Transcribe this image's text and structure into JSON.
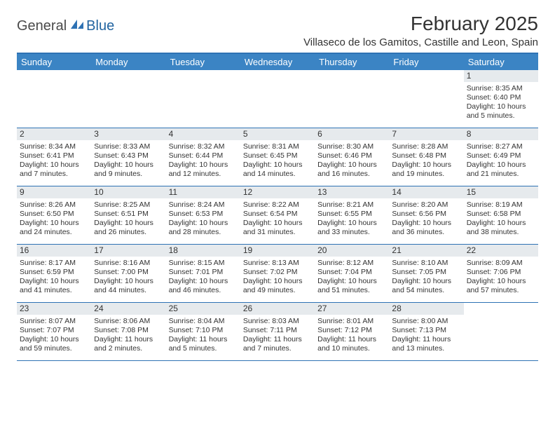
{
  "logo": {
    "general": "General",
    "blue": "Blue"
  },
  "title": "February 2025",
  "location": "Villaseco de los Gamitos, Castille and Leon, Spain",
  "dayNames": [
    "Sunday",
    "Monday",
    "Tuesday",
    "Wednesday",
    "Thursday",
    "Friday",
    "Saturday"
  ],
  "colors": {
    "headerBar": "#3b84c4",
    "borderBlue": "#2e72b4",
    "dayNumBg": "#e6eaed",
    "text": "#333333",
    "logoBlue": "#2264a0"
  },
  "weeks": [
    [
      null,
      null,
      null,
      null,
      null,
      null,
      {
        "n": "1",
        "sr": "Sunrise: 8:35 AM",
        "ss": "Sunset: 6:40 PM",
        "dl": "Daylight: 10 hours and 5 minutes."
      }
    ],
    [
      {
        "n": "2",
        "sr": "Sunrise: 8:34 AM",
        "ss": "Sunset: 6:41 PM",
        "dl": "Daylight: 10 hours and 7 minutes."
      },
      {
        "n": "3",
        "sr": "Sunrise: 8:33 AM",
        "ss": "Sunset: 6:43 PM",
        "dl": "Daylight: 10 hours and 9 minutes."
      },
      {
        "n": "4",
        "sr": "Sunrise: 8:32 AM",
        "ss": "Sunset: 6:44 PM",
        "dl": "Daylight: 10 hours and 12 minutes."
      },
      {
        "n": "5",
        "sr": "Sunrise: 8:31 AM",
        "ss": "Sunset: 6:45 PM",
        "dl": "Daylight: 10 hours and 14 minutes."
      },
      {
        "n": "6",
        "sr": "Sunrise: 8:30 AM",
        "ss": "Sunset: 6:46 PM",
        "dl": "Daylight: 10 hours and 16 minutes."
      },
      {
        "n": "7",
        "sr": "Sunrise: 8:28 AM",
        "ss": "Sunset: 6:48 PM",
        "dl": "Daylight: 10 hours and 19 minutes."
      },
      {
        "n": "8",
        "sr": "Sunrise: 8:27 AM",
        "ss": "Sunset: 6:49 PM",
        "dl": "Daylight: 10 hours and 21 minutes."
      }
    ],
    [
      {
        "n": "9",
        "sr": "Sunrise: 8:26 AM",
        "ss": "Sunset: 6:50 PM",
        "dl": "Daylight: 10 hours and 24 minutes."
      },
      {
        "n": "10",
        "sr": "Sunrise: 8:25 AM",
        "ss": "Sunset: 6:51 PM",
        "dl": "Daylight: 10 hours and 26 minutes."
      },
      {
        "n": "11",
        "sr": "Sunrise: 8:24 AM",
        "ss": "Sunset: 6:53 PM",
        "dl": "Daylight: 10 hours and 28 minutes."
      },
      {
        "n": "12",
        "sr": "Sunrise: 8:22 AM",
        "ss": "Sunset: 6:54 PM",
        "dl": "Daylight: 10 hours and 31 minutes."
      },
      {
        "n": "13",
        "sr": "Sunrise: 8:21 AM",
        "ss": "Sunset: 6:55 PM",
        "dl": "Daylight: 10 hours and 33 minutes."
      },
      {
        "n": "14",
        "sr": "Sunrise: 8:20 AM",
        "ss": "Sunset: 6:56 PM",
        "dl": "Daylight: 10 hours and 36 minutes."
      },
      {
        "n": "15",
        "sr": "Sunrise: 8:19 AM",
        "ss": "Sunset: 6:58 PM",
        "dl": "Daylight: 10 hours and 38 minutes."
      }
    ],
    [
      {
        "n": "16",
        "sr": "Sunrise: 8:17 AM",
        "ss": "Sunset: 6:59 PM",
        "dl": "Daylight: 10 hours and 41 minutes."
      },
      {
        "n": "17",
        "sr": "Sunrise: 8:16 AM",
        "ss": "Sunset: 7:00 PM",
        "dl": "Daylight: 10 hours and 44 minutes."
      },
      {
        "n": "18",
        "sr": "Sunrise: 8:15 AM",
        "ss": "Sunset: 7:01 PM",
        "dl": "Daylight: 10 hours and 46 minutes."
      },
      {
        "n": "19",
        "sr": "Sunrise: 8:13 AM",
        "ss": "Sunset: 7:02 PM",
        "dl": "Daylight: 10 hours and 49 minutes."
      },
      {
        "n": "20",
        "sr": "Sunrise: 8:12 AM",
        "ss": "Sunset: 7:04 PM",
        "dl": "Daylight: 10 hours and 51 minutes."
      },
      {
        "n": "21",
        "sr": "Sunrise: 8:10 AM",
        "ss": "Sunset: 7:05 PM",
        "dl": "Daylight: 10 hours and 54 minutes."
      },
      {
        "n": "22",
        "sr": "Sunrise: 8:09 AM",
        "ss": "Sunset: 7:06 PM",
        "dl": "Daylight: 10 hours and 57 minutes."
      }
    ],
    [
      {
        "n": "23",
        "sr": "Sunrise: 8:07 AM",
        "ss": "Sunset: 7:07 PM",
        "dl": "Daylight: 10 hours and 59 minutes."
      },
      {
        "n": "24",
        "sr": "Sunrise: 8:06 AM",
        "ss": "Sunset: 7:08 PM",
        "dl": "Daylight: 11 hours and 2 minutes."
      },
      {
        "n": "25",
        "sr": "Sunrise: 8:04 AM",
        "ss": "Sunset: 7:10 PM",
        "dl": "Daylight: 11 hours and 5 minutes."
      },
      {
        "n": "26",
        "sr": "Sunrise: 8:03 AM",
        "ss": "Sunset: 7:11 PM",
        "dl": "Daylight: 11 hours and 7 minutes."
      },
      {
        "n": "27",
        "sr": "Sunrise: 8:01 AM",
        "ss": "Sunset: 7:12 PM",
        "dl": "Daylight: 11 hours and 10 minutes."
      },
      {
        "n": "28",
        "sr": "Sunrise: 8:00 AM",
        "ss": "Sunset: 7:13 PM",
        "dl": "Daylight: 11 hours and 13 minutes."
      },
      null
    ]
  ]
}
